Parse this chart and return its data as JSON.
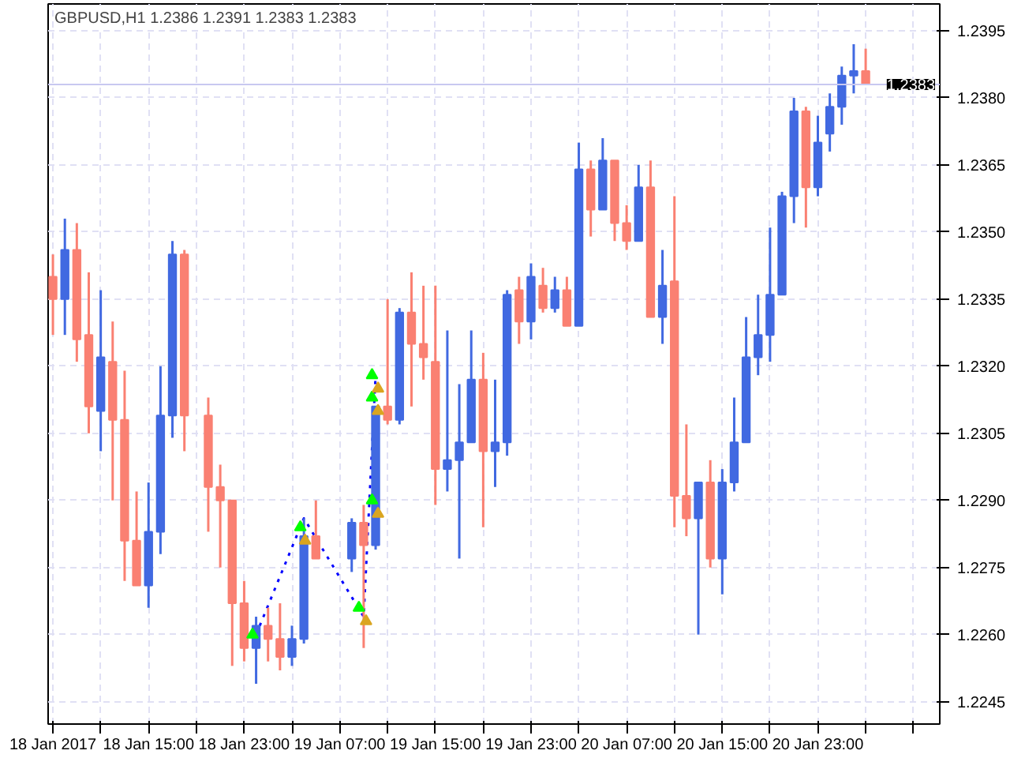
{
  "chart_data": {
    "type": "candlestick",
    "title": "GBPUSD,H1  1.2386 1.2391 1.2383 1.2383",
    "x": [
      "2017-01-18T07:00",
      "2017-01-18T08:00",
      "2017-01-18T09:00",
      "2017-01-18T10:00",
      "2017-01-18T11:00",
      "2017-01-18T12:00",
      "2017-01-18T13:00",
      "2017-01-18T14:00",
      "2017-01-18T15:00",
      "2017-01-18T16:00",
      "2017-01-18T17:00",
      "2017-01-18T18:00",
      "2017-01-18T20:00",
      "2017-01-18T21:00",
      "2017-01-18T22:00",
      "2017-01-18T23:00",
      "2017-01-19T00:00",
      "2017-01-19T01:00",
      "2017-01-19T02:00",
      "2017-01-19T03:00",
      "2017-01-19T04:00",
      "2017-01-19T05:00",
      "2017-01-19T08:00",
      "2017-01-19T09:00",
      "2017-01-19T10:00",
      "2017-01-19T11:00",
      "2017-01-19T12:00",
      "2017-01-19T13:00",
      "2017-01-19T14:00",
      "2017-01-19T15:00",
      "2017-01-19T16:00",
      "2017-01-19T17:00",
      "2017-01-19T18:00",
      "2017-01-19T19:00",
      "2017-01-19T20:00",
      "2017-01-19T21:00",
      "2017-01-19T22:00",
      "2017-01-19T23:00",
      "2017-01-20T00:00",
      "2017-01-20T01:00",
      "2017-01-20T02:00",
      "2017-01-20T03:00",
      "2017-01-20T04:00",
      "2017-01-20T05:00",
      "2017-01-20T06:00",
      "2017-01-20T07:00",
      "2017-01-20T08:00",
      "2017-01-20T09:00",
      "2017-01-20T10:00",
      "2017-01-20T11:00",
      "2017-01-20T12:00",
      "2017-01-20T13:00",
      "2017-01-20T14:00",
      "2017-01-20T15:00",
      "2017-01-20T16:00",
      "2017-01-20T17:00",
      "2017-01-20T18:00",
      "2017-01-20T19:00",
      "2017-01-20T20:00",
      "2017-01-20T21:00",
      "2017-01-20T22:00",
      "2017-01-20T23:00",
      "2017-01-21T00:00",
      "2017-01-21T01:00",
      "2017-01-21T02:00",
      "2017-01-21T03:00"
    ],
    "ohlc": [
      [
        1.234,
        1.2345,
        1.2327,
        1.2335
      ],
      [
        1.2335,
        1.2353,
        1.2327,
        1.2346
      ],
      [
        1.2346,
        1.2352,
        1.2321,
        1.2326
      ],
      [
        1.2327,
        1.2341,
        1.2305,
        1.2311
      ],
      [
        1.231,
        1.2337,
        1.2301,
        1.2322
      ],
      [
        1.2321,
        1.233,
        1.229,
        1.2308
      ],
      [
        1.2308,
        1.2319,
        1.2272,
        1.2281
      ],
      [
        1.2281,
        1.2292,
        1.2271,
        1.2271
      ],
      [
        1.2271,
        1.2294,
        1.2266,
        1.2283
      ],
      [
        1.2283,
        1.232,
        1.2278,
        1.2309
      ],
      [
        1.2309,
        1.2348,
        1.2304,
        1.2345
      ],
      [
        1.2345,
        1.2346,
        1.2301,
        1.2309
      ],
      [
        1.2309,
        1.2313,
        1.2283,
        1.2293
      ],
      [
        1.2293,
        1.2298,
        1.2275,
        1.229
      ],
      [
        1.229,
        1.229,
        1.2253,
        1.2267
      ],
      [
        1.2267,
        1.2272,
        1.2254,
        1.2257
      ],
      [
        1.2257,
        1.2264,
        1.2249,
        1.2262
      ],
      [
        1.2262,
        1.2266,
        1.2254,
        1.2259
      ],
      [
        1.2259,
        1.2267,
        1.2252,
        1.2255
      ],
      [
        1.2255,
        1.2262,
        1.2253,
        1.2259
      ],
      [
        1.2259,
        1.2286,
        1.2258,
        1.2282
      ],
      [
        1.2282,
        1.229,
        1.2277,
        1.2277
      ],
      [
        1.2277,
        1.2286,
        1.2274,
        1.2285
      ],
      [
        1.2285,
        1.2289,
        1.2257,
        1.228
      ],
      [
        1.228,
        1.2311,
        1.2279,
        1.2311
      ],
      [
        1.2311,
        1.2335,
        1.2307,
        1.2308
      ],
      [
        1.2308,
        1.2333,
        1.2307,
        1.2332
      ],
      [
        1.2332,
        1.2341,
        1.2311,
        1.2325
      ],
      [
        1.2325,
        1.2338,
        1.2317,
        1.2322
      ],
      [
        1.2321,
        1.2338,
        1.2289,
        1.2297
      ],
      [
        1.2297,
        1.2328,
        1.2292,
        1.2299
      ],
      [
        1.2299,
        1.2316,
        1.2277,
        1.2303
      ],
      [
        1.2303,
        1.2328,
        1.2303,
        1.2317
      ],
      [
        1.2317,
        1.2323,
        1.2284,
        1.2301
      ],
      [
        1.2301,
        1.2317,
        1.2293,
        1.2303
      ],
      [
        1.2303,
        1.2337,
        1.23,
        1.2336
      ],
      [
        1.2337,
        1.234,
        1.2325,
        1.233
      ],
      [
        1.233,
        1.2343,
        1.2326,
        1.234
      ],
      [
        1.2338,
        1.2342,
        1.2332,
        1.2333
      ],
      [
        1.2333,
        1.234,
        1.2332,
        1.2337
      ],
      [
        1.2337,
        1.234,
        1.2329,
        1.2329
      ],
      [
        1.2329,
        1.237,
        1.2329,
        1.2364
      ],
      [
        1.2364,
        1.2366,
        1.2349,
        1.2355
      ],
      [
        1.2355,
        1.2371,
        1.2355,
        1.2366
      ],
      [
        1.2366,
        1.2366,
        1.2348,
        1.2352
      ],
      [
        1.2352,
        1.2356,
        1.2346,
        1.2348
      ],
      [
        1.2348,
        1.2365,
        1.2348,
        1.236
      ],
      [
        1.236,
        1.2366,
        1.2331,
        1.2331
      ],
      [
        1.2331,
        1.2346,
        1.2325,
        1.2338
      ],
      [
        1.2339,
        1.2358,
        1.2284,
        1.2291
      ],
      [
        1.2291,
        1.2307,
        1.2282,
        1.2286
      ],
      [
        1.2286,
        1.2294,
        1.226,
        1.2294
      ],
      [
        1.2294,
        1.2299,
        1.2275,
        1.2277
      ],
      [
        1.2277,
        1.2297,
        1.2269,
        1.2294
      ],
      [
        1.2294,
        1.2313,
        1.2292,
        1.2303
      ],
      [
        1.2303,
        1.2331,
        1.2303,
        1.2322
      ],
      [
        1.2322,
        1.2336,
        1.2318,
        1.2327
      ],
      [
        1.2327,
        1.2351,
        1.2321,
        1.2336
      ],
      [
        1.2336,
        1.2359,
        1.2336,
        1.2358
      ],
      [
        1.2358,
        1.238,
        1.2352,
        1.2377
      ],
      [
        1.2377,
        1.2378,
        1.2351,
        1.236
      ],
      [
        1.236,
        1.2376,
        1.2358,
        1.237
      ],
      [
        1.2372,
        1.2381,
        1.2368,
        1.2378
      ],
      [
        1.2378,
        1.2387,
        1.2374,
        1.2385
      ],
      [
        1.2385,
        1.2392,
        1.2381,
        1.2386
      ],
      [
        1.2386,
        1.2391,
        1.2383,
        1.2383
      ]
    ],
    "colors": [
      "#fa8072",
      "#4169e1",
      "#fa8072",
      "#fa8072",
      "#4169e1",
      "#fa8072",
      "#fa8072",
      "#fa8072",
      "#4169e1",
      "#4169e1",
      "#4169e1",
      "#fa8072",
      "#fa8072",
      "#fa8072",
      "#fa8072",
      "#fa8072",
      "#4169e1",
      "#fa8072",
      "#fa8072",
      "#4169e1",
      "#4169e1",
      "#fa8072",
      "#4169e1",
      "#fa8072",
      "#4169e1",
      "#fa8072",
      "#4169e1",
      "#fa8072",
      "#fa8072",
      "#fa8072",
      "#4169e1",
      "#4169e1",
      "#4169e1",
      "#fa8072",
      "#4169e1",
      "#4169e1",
      "#fa8072",
      "#4169e1",
      "#fa8072",
      "#4169e1",
      "#fa8072",
      "#4169e1",
      "#fa8072",
      "#4169e1",
      "#fa8072",
      "#fa8072",
      "#4169e1",
      "#fa8072",
      "#4169e1",
      "#fa8072",
      "#fa8072",
      "#4169e1",
      "#fa8072",
      "#4169e1",
      "#4169e1",
      "#4169e1",
      "#4169e1",
      "#4169e1",
      "#4169e1",
      "#4169e1",
      "#fa8072",
      "#4169e1",
      "#4169e1",
      "#4169e1",
      "#4169e1",
      "#fa8072"
    ],
    "series": [
      {
        "type": "line",
        "x": [
          "2017-01-19T00:00",
          "2017-01-19T04:00",
          "2017-01-19T09:00",
          "2017-01-19T10:00"
        ],
        "values": [
          1.226,
          1.2286,
          1.2264,
          1.2318
        ],
        "color": "#0000ff",
        "line_style": "dotted"
      },
      {
        "type": "scatter",
        "x": [
          "2017-01-18T23:42",
          "2017-01-19T03:42",
          "2017-01-19T08:36",
          "2017-01-19T09:42",
          "2017-01-19T09:42",
          "2017-01-19T09:42"
        ],
        "values": [
          1.226,
          1.2284,
          1.2266,
          1.229,
          1.2313,
          1.2318
        ],
        "color": "#00ff00",
        "marker": "triangle"
      },
      {
        "type": "scatter",
        "x": [
          "2017-01-19T04:06",
          "2017-01-19T09:12",
          "2017-01-19T10:12",
          "2017-01-19T10:12",
          "2017-01-19T10:12"
        ],
        "values": [
          1.2281,
          1.2263,
          1.2287,
          1.231,
          1.2315
        ],
        "color": "#daa520",
        "marker": "triangle"
      }
    ],
    "xlim": [
      "2017-01-18T06:36",
      "2017-01-21T09:12"
    ],
    "ylim": [
      1.224,
      1.2401
    ],
    "xticks": [
      {
        "value": "2017-01-18T07:00",
        "label": "18 Jan 2017"
      },
      {
        "value": "2017-01-18T11:00",
        "label": null
      },
      {
        "value": "2017-01-18T15:00",
        "label": "18 Jan 15:00"
      },
      {
        "value": "2017-01-18T19:00",
        "label": null
      },
      {
        "value": "2017-01-18T23:00",
        "label": "18 Jan 23:00"
      },
      {
        "value": "2017-01-19T03:00",
        "label": null
      },
      {
        "value": "2017-01-19T07:00",
        "label": "19 Jan 07:00"
      },
      {
        "value": "2017-01-19T11:00",
        "label": null
      },
      {
        "value": "2017-01-19T15:00",
        "label": "19 Jan 15:00"
      },
      {
        "value": "2017-01-19T19:00",
        "label": null
      },
      {
        "value": "2017-01-19T23:00",
        "label": "19 Jan 23:00"
      },
      {
        "value": "2017-01-20T03:00",
        "label": null
      },
      {
        "value": "2017-01-20T07:00",
        "label": "20 Jan 07:00"
      },
      {
        "value": "2017-01-20T11:00",
        "label": null
      },
      {
        "value": "2017-01-20T15:00",
        "label": "20 Jan 15:00"
      },
      {
        "value": "2017-01-20T19:00",
        "label": null
      },
      {
        "value": "2017-01-20T23:00",
        "label": "20 Jan 23:00"
      },
      {
        "value": "2017-01-21T03:00",
        "label": null
      },
      {
        "value": "2017-01-21T07:00",
        "label": null
      }
    ],
    "yticks": [
      {
        "value": 1.2245,
        "label": "1.2245"
      },
      {
        "value": 1.226,
        "label": "1.2260"
      },
      {
        "value": 1.2275,
        "label": "1.2275"
      },
      {
        "value": 1.229,
        "label": "1.2290"
      },
      {
        "value": 1.2305,
        "label": "1.2305"
      },
      {
        "value": 1.232,
        "label": "1.2320"
      },
      {
        "value": 1.2335,
        "label": "1.2335"
      },
      {
        "value": 1.235,
        "label": "1.2350"
      },
      {
        "value": 1.2365,
        "label": "1.2365"
      },
      {
        "value": 1.238,
        "label": "1.2380"
      },
      {
        "value": 1.2395,
        "label": "1.2395"
      }
    ],
    "ref_lines": [
      {
        "axis": "y",
        "value": 1.2383,
        "label": "1.2383",
        "color": "#c8c8f0"
      }
    ],
    "grid": true
  }
}
